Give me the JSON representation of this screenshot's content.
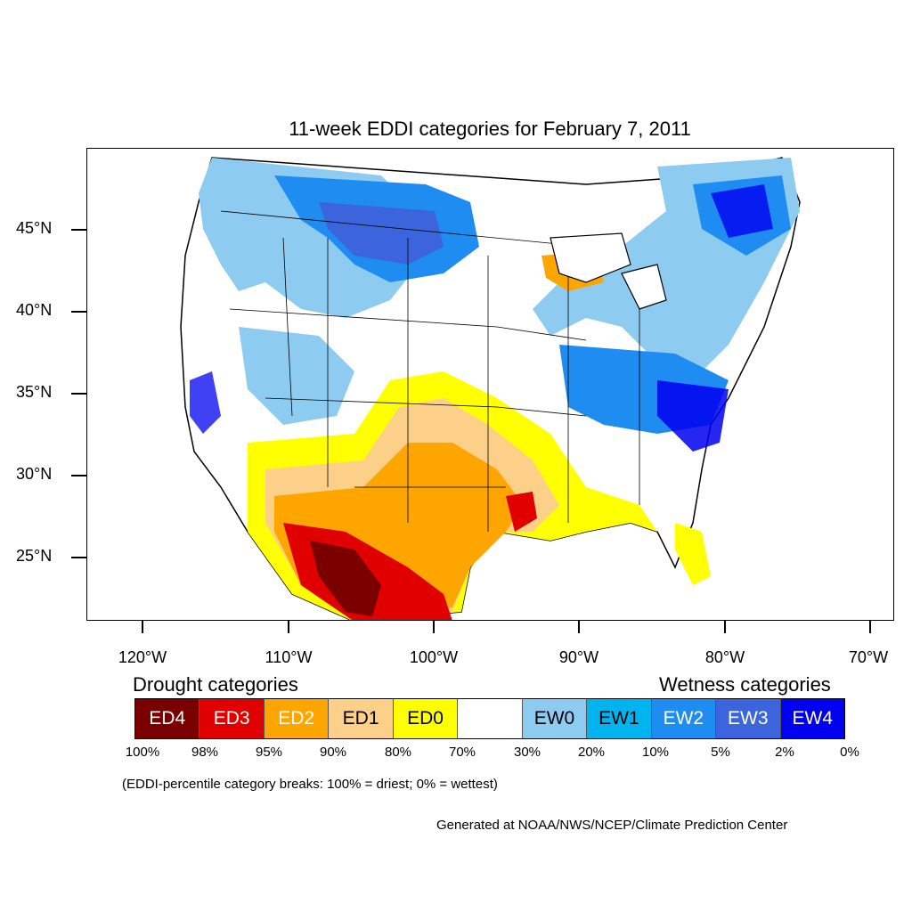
{
  "title": "11-week EDDI categories for February 7, 2011",
  "map": {
    "lat_labels": [
      {
        "label": "45°N",
        "lat": 45
      },
      {
        "label": "40°N",
        "lat": 40
      },
      {
        "label": "35°N",
        "lat": 35
      },
      {
        "label": "30°N",
        "lat": 30
      },
      {
        "label": "25°N",
        "lat": 25
      }
    ],
    "lon_labels": [
      {
        "label": "120°W",
        "lon": -120
      },
      {
        "label": "110°W",
        "lon": -110
      },
      {
        "label": "100°W",
        "lon": -100
      },
      {
        "label": "90°W",
        "lon": -90
      },
      {
        "label": "80°W",
        "lon": -80
      },
      {
        "label": "70°W",
        "lon": -70
      }
    ]
  },
  "legend": {
    "drought_heading": "Drought categories",
    "wetness_heading": "Wetness categories",
    "categories": [
      {
        "label": "ED4",
        "color": "#7a0000",
        "text_color": "#ffffff"
      },
      {
        "label": "ED3",
        "color": "#e00000",
        "text_color": "#ffffff"
      },
      {
        "label": "ED2",
        "color": "#ffa500",
        "text_color": "#ffffff"
      },
      {
        "label": "ED1",
        "color": "#fdd08a",
        "text_color": "#000000"
      },
      {
        "label": "ED0",
        "color": "#ffff00",
        "text_color": "#000000"
      },
      {
        "label": "",
        "color": "#ffffff",
        "text_color": "#000000"
      },
      {
        "label": "EW0",
        "color": "#8ecbf0",
        "text_color": "#000000"
      },
      {
        "label": "EW1",
        "color": "#00b4f0",
        "text_color": "#000000"
      },
      {
        "label": "EW2",
        "color": "#1e8cf0",
        "text_color": "#ffffff"
      },
      {
        "label": "EW3",
        "color": "#3c64dc",
        "text_color": "#ffffff"
      },
      {
        "label": "EW4",
        "color": "#0000f0",
        "text_color": "#ffffff"
      }
    ],
    "breaks": [
      "100%",
      "98%",
      "95%",
      "90%",
      "80%",
      "70%",
      "30%",
      "20%",
      "10%",
      "5%",
      "2%",
      "0%"
    ]
  },
  "note": "(EDDI-percentile category breaks: 100% = driest; 0% = wettest)",
  "credit": "Generated at NOAA/NWS/NCEP/Climate Prediction Center"
}
